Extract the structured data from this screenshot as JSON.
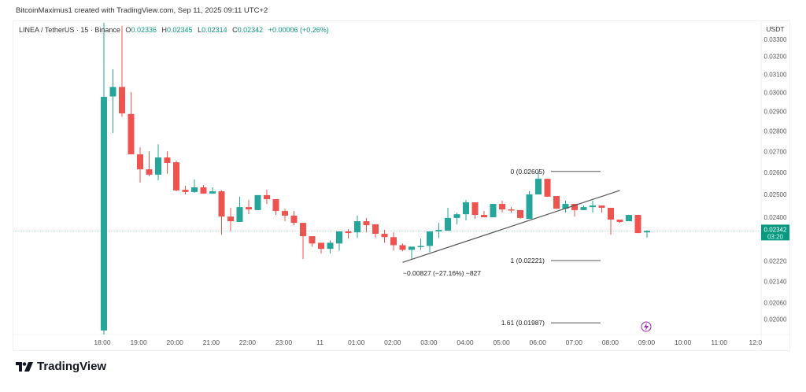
{
  "credit": "BitcoinMaximus1 created with TradingView.com, Sep 11, 2025 09:11 UTC+2",
  "symbol_line": {
    "symbol": "LINEA / TetherUS · 15 · Binance",
    "o_label": "O",
    "o": "0.02336",
    "h_label": "H",
    "h": "0.02345",
    "l_label": "L",
    "l": "0.02314",
    "c_label": "C",
    "c": "0.02342",
    "change": "+0.00006 (+0.26%)"
  },
  "price_axis": {
    "currency": "USDT",
    "ticks": [
      "0.03300",
      "0.03200",
      "0.03100",
      "0.03000",
      "0.02900",
      "0.02800",
      "0.02700",
      "0.02600",
      "0.02500",
      "0.02400",
      "0.02220",
      "0.02140",
      "0.02060",
      "0.02000"
    ],
    "scale": "log",
    "current_price": "0.02342",
    "countdown": "03:20"
  },
  "time_axis": {
    "ticks": [
      "18:00",
      "19:00",
      "20:00",
      "21:00",
      "22:00",
      "23:00",
      "11",
      "01:00",
      "02:00",
      "03:00",
      "04:00",
      "05:00",
      "06:00",
      "07:00",
      "08:00",
      "09:00",
      "10:00",
      "11:00",
      "12:0"
    ]
  },
  "colors": {
    "up": "#26a69a",
    "down": "#ef5350",
    "price_line": "#089981",
    "drawing": "#555555"
  },
  "chart_data": {
    "type": "candlestick",
    "interval_minutes": 15,
    "first_candle_time": "18:00",
    "ohlc": [
      [
        0.0196,
        0.034,
        0.0194,
        0.02977
      ],
      [
        0.02979,
        0.03128,
        0.02791,
        0.0303
      ],
      [
        0.0303,
        0.0338,
        0.02872,
        0.0289
      ],
      [
        0.02887,
        0.03003,
        0.02686,
        0.02686
      ],
      [
        0.02686,
        0.0272,
        0.02553,
        0.02615
      ],
      [
        0.02615,
        0.027,
        0.02582,
        0.0259
      ],
      [
        0.0259,
        0.02735,
        0.02564,
        0.02671
      ],
      [
        0.02671,
        0.027,
        0.02594,
        0.02645
      ],
      [
        0.02648,
        0.02656,
        0.02514,
        0.02518
      ],
      [
        0.02521,
        0.02539,
        0.025,
        0.02511
      ],
      [
        0.02511,
        0.02568,
        0.02507,
        0.02532
      ],
      [
        0.02532,
        0.02543,
        0.02504,
        0.02504
      ],
      [
        0.02504,
        0.02532,
        0.02504,
        0.02514
      ],
      [
        0.02514,
        0.02518,
        0.02326,
        0.02403
      ],
      [
        0.02403,
        0.02441,
        0.0234,
        0.02383
      ],
      [
        0.0238,
        0.0249,
        0.0238,
        0.02444
      ],
      [
        0.02444,
        0.02476,
        0.02413,
        0.02434
      ],
      [
        0.02431,
        0.02497,
        0.02431,
        0.02497
      ],
      [
        0.02497,
        0.02521,
        0.02458,
        0.02479
      ],
      [
        0.02479,
        0.02479,
        0.0241,
        0.02427
      ],
      [
        0.02427,
        0.02437,
        0.02383,
        0.02407
      ],
      [
        0.02407,
        0.02427,
        0.02366,
        0.02376
      ],
      [
        0.02376,
        0.02376,
        0.02227,
        0.0232
      ],
      [
        0.0232,
        0.0232,
        0.02277,
        0.0229
      ],
      [
        0.02293,
        0.02293,
        0.02249,
        0.02268
      ],
      [
        0.02268,
        0.02303,
        0.02249,
        0.02293
      ],
      [
        0.0229,
        0.0234,
        0.02261,
        0.0234
      ],
      [
        0.0234,
        0.0235,
        0.0231,
        0.02333
      ],
      [
        0.02336,
        0.02407,
        0.02313,
        0.02383
      ],
      [
        0.02383,
        0.02397,
        0.02336,
        0.02366
      ],
      [
        0.0237,
        0.0237,
        0.02313,
        0.0233
      ],
      [
        0.0233,
        0.02346,
        0.02293,
        0.02316
      ],
      [
        0.02316,
        0.02336,
        0.02261,
        0.02283
      ],
      [
        0.02283,
        0.0229,
        0.02258,
        0.02264
      ],
      [
        0.02264,
        0.02277,
        0.02225,
        0.02277
      ],
      [
        0.02277,
        0.0231,
        0.02264,
        0.0228
      ],
      [
        0.0228,
        0.0234,
        0.02255,
        0.0234
      ],
      [
        0.0234,
        0.02376,
        0.02313,
        0.02346
      ],
      [
        0.02343,
        0.02441,
        0.02343,
        0.02397
      ],
      [
        0.02397,
        0.0242,
        0.0237,
        0.02413
      ],
      [
        0.02413,
        0.02476,
        0.02386,
        0.02465
      ],
      [
        0.02465,
        0.02465,
        0.02393,
        0.0241
      ],
      [
        0.0241,
        0.02427,
        0.024,
        0.024
      ],
      [
        0.024,
        0.02458,
        0.024,
        0.02458
      ],
      [
        0.02458,
        0.02472,
        0.0242,
        0.02434
      ],
      [
        0.02434,
        0.02444,
        0.0242,
        0.02431
      ],
      [
        0.02431,
        0.02431,
        0.02393,
        0.02397
      ],
      [
        0.02393,
        0.02514,
        0.02393,
        0.025
      ],
      [
        0.025,
        0.02605,
        0.025,
        0.02571
      ],
      [
        0.02571,
        0.02571,
        0.0249,
        0.0249
      ],
      [
        0.02493,
        0.02493,
        0.02437,
        0.02437
      ],
      [
        0.02437,
        0.02472,
        0.0242,
        0.02458
      ],
      [
        0.02458,
        0.02458,
        0.02403,
        0.02431
      ],
      [
        0.02431,
        0.02451,
        0.02431,
        0.02444
      ],
      [
        0.02444,
        0.02472,
        0.0242,
        0.02451
      ],
      [
        0.02451,
        0.02451,
        0.0242,
        0.02441
      ],
      [
        0.02441,
        0.02441,
        0.02326,
        0.0239
      ],
      [
        0.0239,
        0.0239,
        0.02376,
        0.0238
      ],
      [
        0.02383,
        0.0241,
        0.02383,
        0.0241
      ],
      [
        0.0241,
        0.0241,
        0.02333,
        0.02333
      ],
      [
        0.02336,
        0.02345,
        0.02314,
        0.02342
      ]
    ],
    "trend_line": {
      "start": {
        "time": "02:15",
        "price": 0.02214
      },
      "end": {
        "time": "08:15",
        "price": 0.02518
      },
      "label": "−0.00827 (−27.16%) −827"
    },
    "fib_levels": [
      {
        "label": "0 (0.02605)",
        "price": 0.02605
      },
      {
        "label": "1 (0.02221)",
        "price": 0.02221
      },
      {
        "label": "1.61 (0.01987)",
        "price": 0.01987
      }
    ]
  },
  "brand": {
    "logo_text": "TradingView"
  },
  "icons": {
    "event": "lightning-icon"
  }
}
